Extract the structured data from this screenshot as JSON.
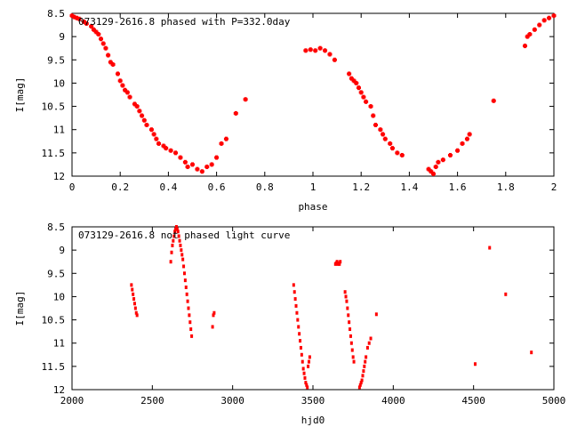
{
  "chart_data": [
    {
      "type": "scatter",
      "title": "073129-2616.8 phased with P=332.0day",
      "xlabel": "phase",
      "ylabel": "I[mag]",
      "xlim": [
        0,
        2
      ],
      "ylim": [
        12,
        8.5
      ],
      "y_inverted": true,
      "xticks": [
        0,
        0.2,
        0.4,
        0.6,
        0.8,
        1,
        1.2,
        1.4,
        1.6,
        1.8,
        2
      ],
      "xtick_labels": [
        "0",
        "0.2",
        "0.4",
        "0.6",
        "0.8",
        "1",
        "1.2",
        "1.4",
        "1.6",
        "1.8",
        "2"
      ],
      "yticks": [
        8.5,
        9,
        9.5,
        10,
        10.5,
        11,
        11.5,
        12
      ],
      "ytick_labels": [
        "8.5",
        "9",
        "9.5",
        "10",
        "10.5",
        "11",
        "11.5",
        "12"
      ],
      "grid": false,
      "marker_color": "#ff0000",
      "points": [
        [
          0.0,
          8.55
        ],
        [
          0.01,
          8.58
        ],
        [
          0.02,
          8.6
        ],
        [
          0.03,
          8.62
        ],
        [
          0.05,
          8.68
        ],
        [
          0.06,
          8.72
        ],
        [
          0.08,
          8.78
        ],
        [
          0.09,
          8.85
        ],
        [
          0.1,
          8.9
        ],
        [
          0.11,
          8.95
        ],
        [
          0.12,
          9.05
        ],
        [
          0.13,
          9.15
        ],
        [
          0.14,
          9.25
        ],
        [
          0.15,
          9.4
        ],
        [
          0.16,
          9.55
        ],
        [
          0.17,
          9.6
        ],
        [
          0.19,
          9.8
        ],
        [
          0.2,
          9.95
        ],
        [
          0.21,
          10.05
        ],
        [
          0.22,
          10.15
        ],
        [
          0.23,
          10.2
        ],
        [
          0.24,
          10.3
        ],
        [
          0.26,
          10.45
        ],
        [
          0.27,
          10.5
        ],
        [
          0.28,
          10.6
        ],
        [
          0.29,
          10.7
        ],
        [
          0.3,
          10.8
        ],
        [
          0.31,
          10.9
        ],
        [
          0.33,
          11.0
        ],
        [
          0.34,
          11.1
        ],
        [
          0.35,
          11.2
        ],
        [
          0.36,
          11.3
        ],
        [
          0.38,
          11.35
        ],
        [
          0.39,
          11.4
        ],
        [
          0.41,
          11.45
        ],
        [
          0.43,
          11.5
        ],
        [
          0.45,
          11.6
        ],
        [
          0.47,
          11.7
        ],
        [
          0.48,
          11.8
        ],
        [
          0.5,
          11.75
        ],
        [
          0.52,
          11.85
        ],
        [
          0.54,
          11.9
        ],
        [
          0.56,
          11.8
        ],
        [
          0.58,
          11.75
        ],
        [
          0.6,
          11.6
        ],
        [
          0.62,
          11.3
        ],
        [
          0.64,
          11.2
        ],
        [
          0.68,
          10.65
        ],
        [
          0.72,
          10.35
        ],
        [
          0.97,
          9.3
        ],
        [
          0.99,
          9.28
        ],
        [
          1.01,
          9.3
        ],
        [
          1.03,
          9.25
        ],
        [
          1.05,
          9.3
        ],
        [
          1.07,
          9.38
        ],
        [
          1.09,
          9.5
        ],
        [
          1.15,
          9.8
        ],
        [
          1.16,
          9.9
        ],
        [
          1.17,
          9.95
        ],
        [
          1.18,
          10.0
        ],
        [
          1.19,
          10.1
        ],
        [
          1.2,
          10.2
        ],
        [
          1.21,
          10.3
        ],
        [
          1.22,
          10.4
        ],
        [
          1.24,
          10.5
        ],
        [
          1.25,
          10.7
        ],
        [
          1.26,
          10.9
        ],
        [
          1.28,
          11.0
        ],
        [
          1.29,
          11.1
        ],
        [
          1.3,
          11.2
        ],
        [
          1.32,
          11.3
        ],
        [
          1.33,
          11.4
        ],
        [
          1.35,
          11.5
        ],
        [
          1.37,
          11.55
        ],
        [
          1.48,
          11.85
        ],
        [
          1.49,
          11.9
        ],
        [
          1.5,
          11.95
        ],
        [
          1.51,
          11.8
        ],
        [
          1.52,
          11.7
        ],
        [
          1.54,
          11.65
        ],
        [
          1.57,
          11.55
        ],
        [
          1.6,
          11.45
        ],
        [
          1.62,
          11.3
        ],
        [
          1.64,
          11.2
        ],
        [
          1.65,
          11.1
        ],
        [
          1.75,
          10.38
        ],
        [
          1.88,
          9.2
        ],
        [
          1.89,
          9.0
        ],
        [
          1.9,
          8.95
        ],
        [
          1.92,
          8.85
        ],
        [
          1.94,
          8.75
        ],
        [
          1.96,
          8.65
        ],
        [
          1.98,
          8.6
        ],
        [
          2.0,
          8.55
        ]
      ]
    },
    {
      "type": "scatter",
      "title": "073129-2616.8 not phased light curve",
      "xlabel": "hjd0",
      "ylabel": "I[mag]",
      "xlim": [
        2000,
        5000
      ],
      "ylim": [
        12,
        8.5
      ],
      "y_inverted": true,
      "xticks": [
        2000,
        2500,
        3000,
        3500,
        4000,
        4500,
        5000
      ],
      "xtick_labels": [
        "2000",
        "2500",
        "3000",
        "3500",
        "4000",
        "4500",
        "5000"
      ],
      "yticks": [
        8.5,
        9,
        9.5,
        10,
        10.5,
        11,
        11.5,
        12
      ],
      "ytick_labels": [
        "8.5",
        "9",
        "9.5",
        "10",
        "10.5",
        "11",
        "11.5",
        "12"
      ],
      "grid": false,
      "marker_color": "#ff0000",
      "points": [
        [
          2370,
          9.75
        ],
        [
          2375,
          9.85
        ],
        [
          2380,
          9.95
        ],
        [
          2385,
          10.05
        ],
        [
          2390,
          10.15
        ],
        [
          2395,
          10.25
        ],
        [
          2400,
          10.35
        ],
        [
          2405,
          10.4
        ],
        [
          2615,
          9.25
        ],
        [
          2620,
          9.05
        ],
        [
          2625,
          8.9
        ],
        [
          2630,
          8.8
        ],
        [
          2635,
          8.7
        ],
        [
          2640,
          8.6
        ],
        [
          2645,
          8.55
        ],
        [
          2650,
          8.5
        ],
        [
          2655,
          8.55
        ],
        [
          2660,
          8.6
        ],
        [
          2665,
          8.7
        ],
        [
          2670,
          8.8
        ],
        [
          2675,
          8.9
        ],
        [
          2680,
          9.0
        ],
        [
          2685,
          9.1
        ],
        [
          2690,
          9.2
        ],
        [
          2695,
          9.35
        ],
        [
          2700,
          9.5
        ],
        [
          2705,
          9.65
        ],
        [
          2710,
          9.8
        ],
        [
          2715,
          9.95
        ],
        [
          2720,
          10.1
        ],
        [
          2725,
          10.25
        ],
        [
          2730,
          10.4
        ],
        [
          2735,
          10.55
        ],
        [
          2740,
          10.7
        ],
        [
          2745,
          10.85
        ],
        [
          2875,
          10.65
        ],
        [
          2880,
          10.4
        ],
        [
          2885,
          10.35
        ],
        [
          3380,
          9.75
        ],
        [
          3385,
          9.9
        ],
        [
          3390,
          10.05
        ],
        [
          3395,
          10.2
        ],
        [
          3400,
          10.35
        ],
        [
          3405,
          10.5
        ],
        [
          3410,
          10.65
        ],
        [
          3415,
          10.8
        ],
        [
          3420,
          10.95
        ],
        [
          3425,
          11.1
        ],
        [
          3430,
          11.25
        ],
        [
          3435,
          11.4
        ],
        [
          3440,
          11.55
        ],
        [
          3445,
          11.65
        ],
        [
          3450,
          11.75
        ],
        [
          3455,
          11.85
        ],
        [
          3460,
          11.9
        ],
        [
          3465,
          11.95
        ],
        [
          3470,
          11.5
        ],
        [
          3475,
          11.4
        ],
        [
          3480,
          11.3
        ],
        [
          3640,
          9.3
        ],
        [
          3645,
          9.28
        ],
        [
          3650,
          9.25
        ],
        [
          3655,
          9.3
        ],
        [
          3660,
          9.28
        ],
        [
          3665,
          9.3
        ],
        [
          3670,
          9.25
        ],
        [
          3700,
          9.9
        ],
        [
          3705,
          10.0
        ],
        [
          3710,
          10.1
        ],
        [
          3715,
          10.25
        ],
        [
          3720,
          10.4
        ],
        [
          3725,
          10.55
        ],
        [
          3730,
          10.7
        ],
        [
          3735,
          10.85
        ],
        [
          3740,
          11.0
        ],
        [
          3745,
          11.15
        ],
        [
          3750,
          11.3
        ],
        [
          3755,
          11.4
        ],
        [
          3790,
          11.95
        ],
        [
          3795,
          11.9
        ],
        [
          3800,
          11.85
        ],
        [
          3805,
          11.8
        ],
        [
          3810,
          11.7
        ],
        [
          3815,
          11.6
        ],
        [
          3820,
          11.5
        ],
        [
          3825,
          11.4
        ],
        [
          3830,
          11.3
        ],
        [
          3840,
          11.1
        ],
        [
          3850,
          11.0
        ],
        [
          3860,
          10.9
        ],
        [
          3895,
          10.38
        ],
        [
          4510,
          11.45
        ],
        [
          4600,
          8.95
        ],
        [
          4700,
          9.95
        ],
        [
          4860,
          11.2
        ]
      ]
    }
  ]
}
